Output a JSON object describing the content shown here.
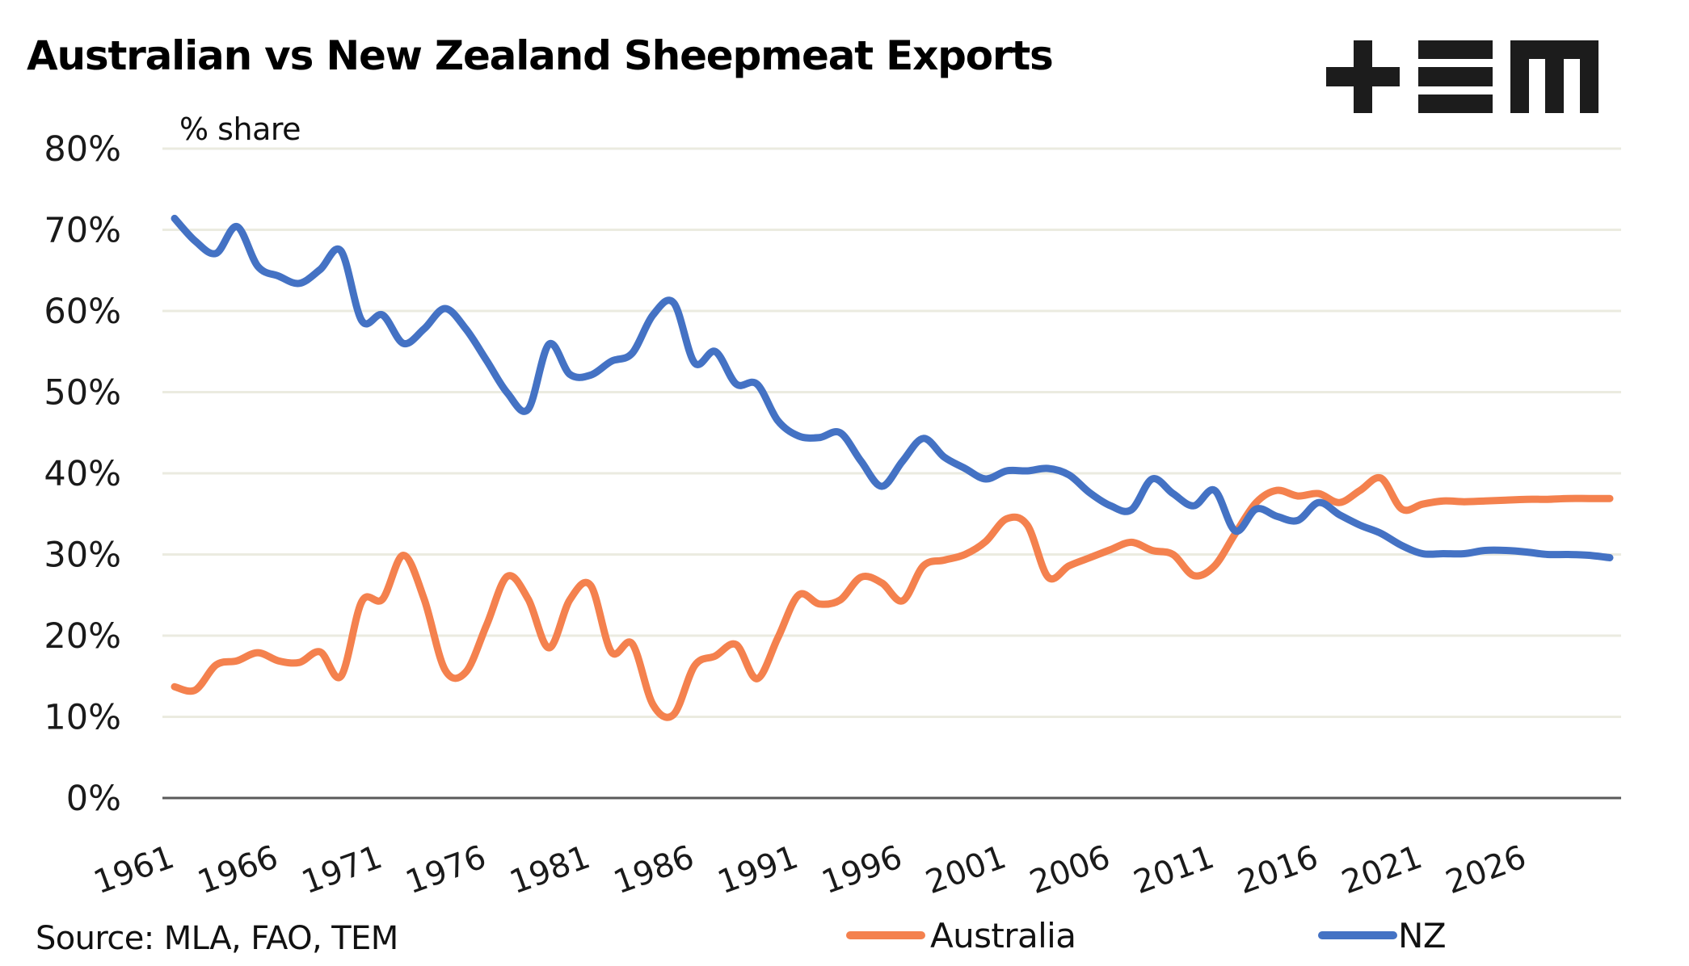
{
  "chart_data": {
    "type": "line",
    "title": "Australian vs New Zealand Sheepmeat Exports",
    "ylabel": "% share",
    "xlabel": "",
    "source": "Source: MLA, FAO, TEM",
    "ylim": [
      0,
      80
    ],
    "yticks": [
      0,
      10,
      20,
      30,
      40,
      50,
      60,
      70,
      80
    ],
    "ytick_labels": [
      "0%",
      "10%",
      "20%",
      "30%",
      "40%",
      "50%",
      "60%",
      "70%",
      "80%"
    ],
    "xlim": [
      1961,
      2030
    ],
    "xticks": [
      1961,
      1966,
      1971,
      1976,
      1981,
      1986,
      1991,
      1996,
      2001,
      2006,
      2011,
      2016,
      2021,
      2026
    ],
    "xtick_labels": [
      "1961",
      "1966",
      "1971",
      "1976",
      "1981",
      "1986",
      "1991",
      "1996",
      "2001",
      "2006",
      "2011",
      "2016",
      "2021",
      "2026"
    ],
    "grid": true,
    "legend_position": "bottom",
    "x": [
      1961,
      1962,
      1963,
      1964,
      1965,
      1966,
      1967,
      1968,
      1969,
      1970,
      1971,
      1972,
      1973,
      1974,
      1975,
      1976,
      1977,
      1978,
      1979,
      1980,
      1981,
      1982,
      1983,
      1984,
      1985,
      1986,
      1987,
      1988,
      1989,
      1990,
      1991,
      1992,
      1993,
      1994,
      1995,
      1996,
      1997,
      1998,
      1999,
      2000,
      2001,
      2002,
      2003,
      2004,
      2005,
      2006,
      2007,
      2008,
      2009,
      2010,
      2011,
      2012,
      2013,
      2014,
      2015,
      2016,
      2017,
      2018,
      2019,
      2020,
      2021,
      2022,
      2023,
      2024,
      2025,
      2026,
      2027,
      2028,
      2029,
      2030
    ],
    "series": [
      {
        "name": "Australia",
        "color": "#f4814e",
        "values": [
          13.7,
          13.3,
          16.4,
          16.9,
          17.9,
          16.9,
          16.7,
          18.0,
          15.0,
          24.2,
          24.5,
          29.9,
          24.5,
          15.8,
          15.5,
          21.3,
          27.3,
          24.5,
          18.5,
          24.4,
          26.2,
          18.0,
          19.0,
          11.5,
          10.3,
          16.3,
          17.5,
          18.9,
          14.7,
          19.7,
          25.0,
          23.9,
          24.4,
          27.2,
          26.5,
          24.3,
          28.6,
          29.3,
          30.0,
          31.6,
          34.4,
          33.6,
          27.2,
          28.6,
          29.6,
          30.6,
          31.5,
          30.5,
          30.0,
          27.4,
          28.6,
          32.6,
          36.4,
          37.9,
          37.2,
          37.5,
          36.4,
          37.9,
          39.4,
          35.6,
          36.2,
          36.6,
          36.5,
          36.6,
          36.7,
          36.8,
          36.8,
          36.9,
          36.9,
          36.9
        ]
      },
      {
        "name": "NZ",
        "color": "#4472c4",
        "values": [
          71.4,
          68.6,
          67.1,
          70.4,
          65.5,
          64.3,
          63.4,
          65.1,
          67.4,
          58.8,
          59.5,
          56.0,
          57.8,
          60.3,
          57.8,
          53.9,
          49.9,
          47.9,
          55.9,
          52.2,
          52.1,
          53.8,
          54.8,
          59.5,
          61.0,
          53.6,
          55.0,
          51.0,
          51.0,
          46.5,
          44.6,
          44.4,
          45.0,
          41.5,
          38.4,
          41.5,
          44.3,
          42.0,
          40.6,
          39.3,
          40.3,
          40.3,
          40.6,
          39.8,
          37.6,
          36.0,
          35.5,
          39.3,
          37.5,
          36.0,
          37.9,
          32.9,
          35.6,
          34.7,
          34.2,
          36.4,
          34.9,
          33.6,
          32.6,
          31.1,
          30.1,
          30.1,
          30.1,
          30.5,
          30.5,
          30.3,
          30.0,
          30.0,
          29.9,
          29.6
        ]
      }
    ]
  },
  "logo": {
    "name": "TEM logo",
    "glyphs": [
      "plus",
      "equals",
      "m"
    ]
  },
  "legend": [
    {
      "label": "Australia",
      "color": "#f4814e"
    },
    {
      "label": "NZ",
      "color": "#4472c4"
    }
  ]
}
